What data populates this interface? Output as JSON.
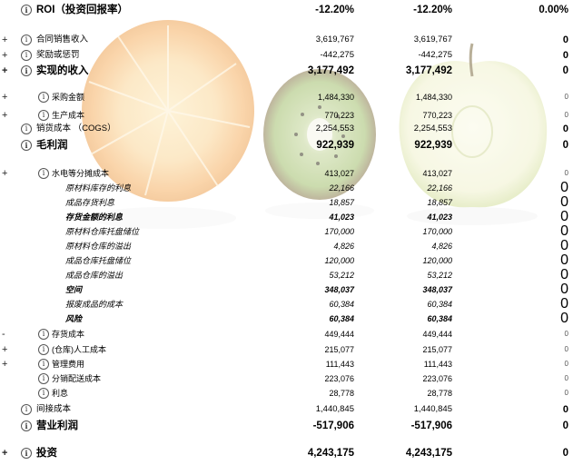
{
  "columns": [
    "col1",
    "col2",
    "col3"
  ],
  "rows": [
    {
      "type": "big",
      "exp": "",
      "info": true,
      "label": "ROI（投资回报率）",
      "v1": "-12.20%",
      "v2": "-12.20%",
      "v3": "0.00%"
    },
    {
      "type": "mid",
      "exp": "+",
      "info": true,
      "label": "合同销售收入",
      "v1": "3,619,767",
      "v2": "3,619,767",
      "v3": "0"
    },
    {
      "type": "mid",
      "exp": "+",
      "info": true,
      "label": "奖励或惩罚",
      "v1": "-442,275",
      "v2": "-442,275",
      "v3": "0"
    },
    {
      "type": "big",
      "exp": "+",
      "info": true,
      "label": "实现的收入",
      "v1": "3,177,492",
      "v2": "3,177,492",
      "v3": "0"
    },
    {
      "type": "sm",
      "exp": "+",
      "info": true,
      "indent": 1,
      "label": "采购金额",
      "v1": "1,484,330",
      "v2": "1,484,330",
      "v3": "0"
    },
    {
      "type": "sm",
      "exp": "+",
      "info": true,
      "indent": 1,
      "label": "生产成本",
      "v1": "770,223",
      "v2": "770,223",
      "v3": "0"
    },
    {
      "type": "mid",
      "exp": "",
      "info": true,
      "label": "销货成本 （COGS）",
      "v1": "2,254,553",
      "v2": "2,254,553",
      "v3": "0"
    },
    {
      "type": "big",
      "exp": "",
      "info": true,
      "label": "毛利润",
      "v1": "922,939",
      "v2": "922,939",
      "v3": "0"
    },
    {
      "type": "sm",
      "exp": "+",
      "info": true,
      "indent": 1,
      "label": "水电等分摊成本",
      "v1": "413,027",
      "v2": "413,027",
      "v3": "0"
    },
    {
      "type": "it",
      "indent": 2,
      "label": "原材料库存的利息",
      "v1": "22,166",
      "v2": "22,166",
      "v3": "0"
    },
    {
      "type": "it",
      "indent": 2,
      "label": "成品存货利息",
      "v1": "18,857",
      "v2": "18,857",
      "v3": "0"
    },
    {
      "type": "itb",
      "indent": 2,
      "label": "存货金额的利息",
      "v1": "41,023",
      "v2": "41,023",
      "v3": "0"
    },
    {
      "type": "it",
      "indent": 2,
      "label": "原材料仓库托盘储位",
      "v1": "170,000",
      "v2": "170,000",
      "v3": "0"
    },
    {
      "type": "it",
      "indent": 2,
      "label": "原材料仓库的溢出",
      "v1": "4,826",
      "v2": "4,826",
      "v3": "0"
    },
    {
      "type": "it",
      "indent": 2,
      "label": "成品仓库托盘储位",
      "v1": "120,000",
      "v2": "120,000",
      "v3": "0"
    },
    {
      "type": "it",
      "indent": 2,
      "label": "成品仓库的溢出",
      "v1": "53,212",
      "v2": "53,212",
      "v3": "0"
    },
    {
      "type": "itb",
      "indent": 2,
      "label": "空间",
      "v1": "348,037",
      "v2": "348,037",
      "v3": "0"
    },
    {
      "type": "it",
      "indent": 2,
      "label": "报废成品的成本",
      "v1": "60,384",
      "v2": "60,384",
      "v3": "0"
    },
    {
      "type": "itb",
      "indent": 2,
      "label": "风险",
      "v1": "60,384",
      "v2": "60,384",
      "v3": "0"
    },
    {
      "type": "sm",
      "exp": "-",
      "info": true,
      "indent": 1,
      "label": "存货成本",
      "v1": "449,444",
      "v2": "449,444",
      "v3": "0"
    },
    {
      "type": "sm",
      "exp": "+",
      "info": true,
      "indent": 1,
      "label": "(仓库)人工成本",
      "v1": "215,077",
      "v2": "215,077",
      "v3": "0"
    },
    {
      "type": "sm",
      "exp": "+",
      "info": true,
      "indent": 1,
      "label": "管理费用",
      "v1": "111,443",
      "v2": "111,443",
      "v3": "0"
    },
    {
      "type": "sm",
      "exp": "",
      "info": true,
      "indent": 1,
      "label": "分销配送成本",
      "v1": "223,076",
      "v2": "223,076",
      "v3": "0"
    },
    {
      "type": "sm",
      "exp": "",
      "info": true,
      "indent": 1,
      "label": "利息",
      "v1": "28,778",
      "v2": "28,778",
      "v3": "0"
    },
    {
      "type": "mid",
      "exp": "",
      "info": true,
      "label": "间接成本",
      "v1": "1,440,845",
      "v2": "1,440,845",
      "v3": "0"
    },
    {
      "type": "big",
      "exp": "",
      "info": true,
      "label": "营业利润",
      "v1": "-517,906",
      "v2": "-517,906",
      "v3": "0"
    },
    {
      "type": "big",
      "exp": "+",
      "info": true,
      "label": "投资",
      "v1": "4,243,175",
      "v2": "4,243,175",
      "v3": "0"
    }
  ],
  "info_glyph": "i",
  "background_icons": [
    "orange-icon",
    "kiwi-icon",
    "apple-icon"
  ]
}
